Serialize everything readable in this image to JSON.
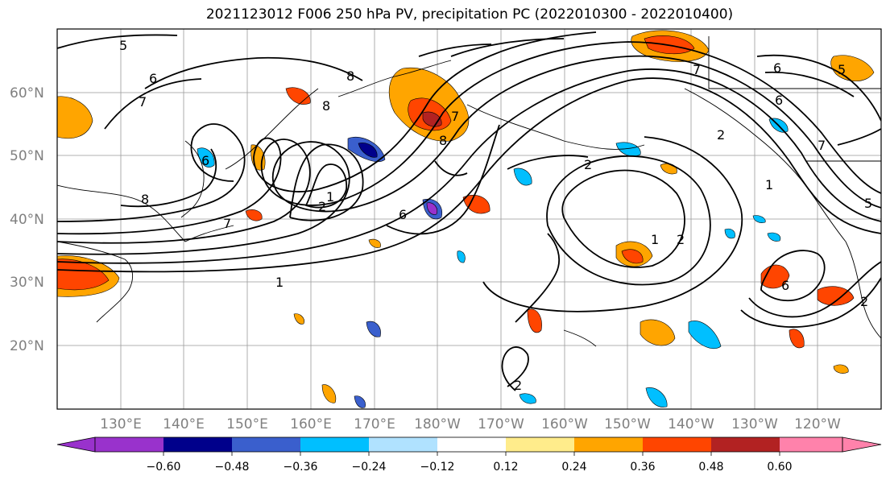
{
  "title": "2021123012 F006 250 hPa PV, precipitation PC (2022010300 - 2022010400)",
  "map": {
    "lat_labels": [
      "60°N",
      "50°N",
      "40°N",
      "30°N",
      "20°N"
    ],
    "lon_labels": [
      "130°E",
      "140°E",
      "150°E",
      "160°E",
      "170°E",
      "180°W",
      "170°W",
      "160°W",
      "150°W",
      "140°W",
      "130°W",
      "120°W"
    ],
    "contour_labels": [
      "5",
      "6",
      "7",
      "8",
      "6",
      "8",
      "7",
      "8",
      "7",
      "7",
      "6",
      "5",
      "6",
      "1",
      "7",
      "2",
      "1",
      "6",
      "2",
      "1",
      "2",
      "2",
      "6",
      "1",
      "2",
      "5",
      "8",
      "2"
    ]
  },
  "colorbar": {
    "ticks": [
      "−0.60",
      "−0.48",
      "−0.36",
      "−0.24",
      "−0.12",
      "0.12",
      "0.24",
      "0.36",
      "0.48",
      "0.60"
    ],
    "colors": [
      "#9932cc",
      "#00008b",
      "#3a5fcd",
      "#00bfff",
      "#b0e2ff",
      "#ffffff",
      "#ffec8b",
      "#ffa500",
      "#ff4500",
      "#b22222",
      "#ff82ab"
    ]
  },
  "chart_data": {
    "type": "heatmap",
    "title": "2021123012 F006 250 hPa PV, precipitation PC (2022010300 - 2022010400)",
    "region": {
      "lon_range": [
        "120°E",
        "110°W"
      ],
      "lat_range": [
        "10°N",
        "70°N"
      ]
    },
    "fields": [
      "250 hPa PV (contours)",
      "precipitation PC (shaded)"
    ],
    "contour_levels": [
      1,
      2,
      5,
      6,
      7,
      8
    ],
    "colorbar_bounds": [
      -0.6,
      -0.48,
      -0.36,
      -0.24,
      -0.12,
      0.12,
      0.24,
      0.36,
      0.48,
      0.6
    ],
    "colorbar_extend": "both"
  }
}
